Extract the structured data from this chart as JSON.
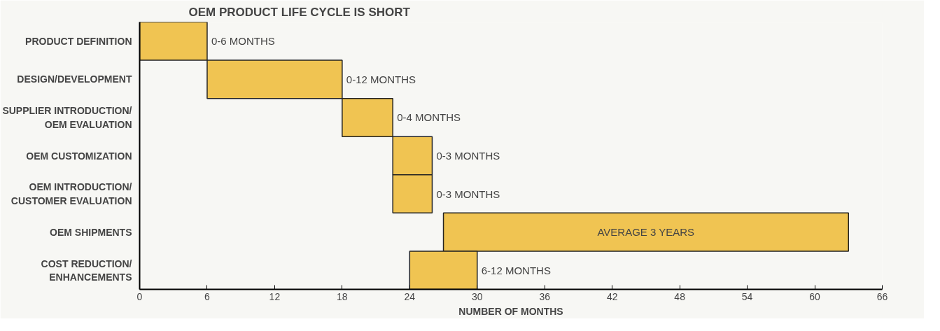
{
  "chart_data": {
    "type": "bar",
    "orientation": "horizontal",
    "title": "OEM PRODUCT LIFE CYCLE IS SHORT",
    "xlabel": "NUMBER OF MONTHS",
    "categories": [
      "PRODUCT DEFINITION",
      "DESIGN/DEVELOPMENT",
      "SUPPLIER INTRODUCTION/\nOEM EVALUATION",
      "OEM CUSTOMIZATION",
      "OEM INTRODUCTION/\nCUSTOMER EVALUATION",
      "OEM SHIPMENTS",
      "COST REDUCTION/\nENHANCEMENTS"
    ],
    "base": [
      0,
      6,
      18,
      22.5,
      22.5,
      27,
      24
    ],
    "values": [
      6,
      12,
      4.5,
      3.5,
      3.5,
      36,
      6
    ],
    "value_labels": [
      "0-6 MONTHS",
      "0-12 MONTHS",
      "0-4 MONTHS",
      "0-3 MONTHS",
      "0-3 MONTHS",
      "AVERAGE 3 YEARS",
      "6-12 MONTHS"
    ],
    "color": "#f0c452",
    "xlim": [
      0,
      66
    ],
    "xticks": [
      0,
      6,
      12,
      18,
      24,
      30,
      36,
      42,
      48,
      54,
      60,
      66
    ],
    "grid": false
  }
}
